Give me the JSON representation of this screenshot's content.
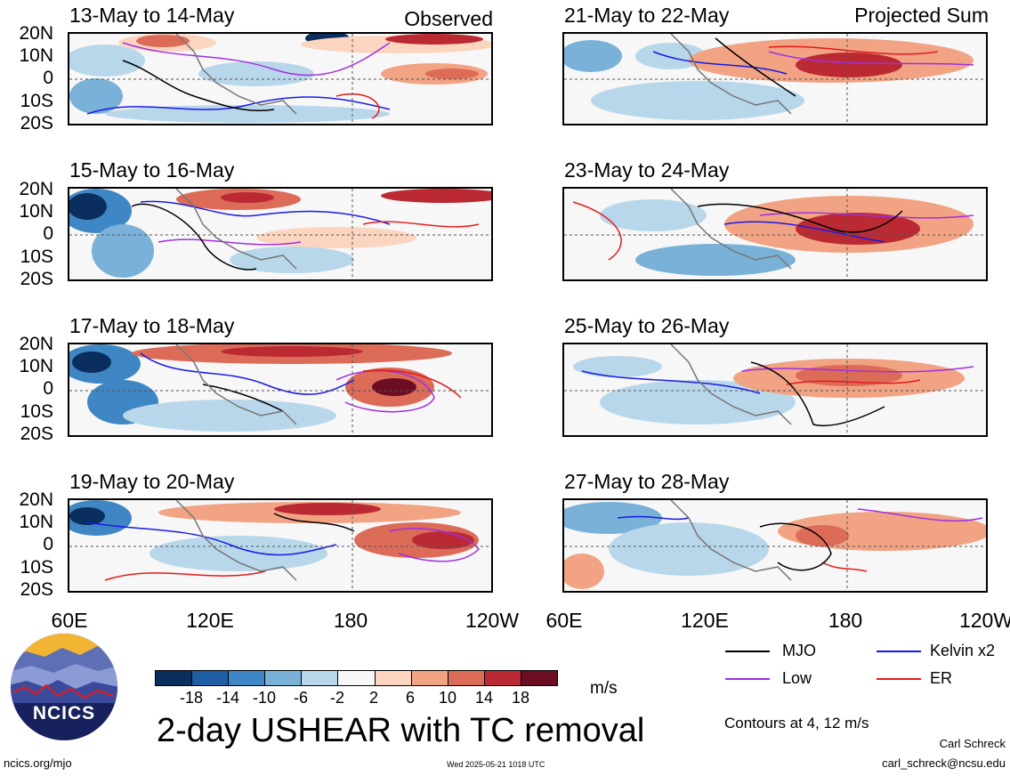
{
  "left_column_tag": "Observed",
  "right_column_tag": "Projected Sum",
  "panels": [
    {
      "title": "13-May to 14-May",
      "column": "left"
    },
    {
      "title": "15-May to 16-May",
      "column": "left"
    },
    {
      "title": "17-May to 18-May",
      "column": "left"
    },
    {
      "title": "19-May to 20-May",
      "column": "left"
    },
    {
      "title": "21-May to 22-May",
      "column": "right"
    },
    {
      "title": "23-May to 24-May",
      "column": "right"
    },
    {
      "title": "25-May to 26-May",
      "column": "right"
    },
    {
      "title": "27-May to 28-May",
      "column": "right"
    }
  ],
  "lat_labels": [
    "20N",
    "10N",
    "0",
    "10S",
    "20S"
  ],
  "lon_labels": [
    "60E",
    "120E",
    "180",
    "120W"
  ],
  "colorbar": {
    "unit": "m/s",
    "ticks": [
      "-18",
      "-14",
      "-10",
      "-6",
      "-2",
      "2",
      "6",
      "10",
      "14",
      "18"
    ],
    "colors": [
      "#0a2f5e",
      "#1f5da5",
      "#3f86c4",
      "#79b1d8",
      "#b9d7ea",
      "#f7f7f7",
      "#fbd5c0",
      "#f1a383",
      "#dc6b57",
      "#bb2a33",
      "#6d0d23"
    ]
  },
  "legend": {
    "items": [
      {
        "label": "MJO",
        "color": "#000000"
      },
      {
        "label": "Kelvin x2",
        "color": "#1a1ae6"
      },
      {
        "label": "Low",
        "color": "#a030e0"
      },
      {
        "label": "ER",
        "color": "#e61a1a"
      }
    ],
    "contours_note": "Contours at 4, 12 m/s"
  },
  "main_title": "2-day USHEAR with TC removal",
  "logo_text": "NCICS",
  "footer": {
    "url": "ncics.org/mjo",
    "timestamp": "Wed 2025-05-21 1018 UTC",
    "author": "Carl Schreck",
    "email": "carl_schreck@ncsu.edu"
  }
}
